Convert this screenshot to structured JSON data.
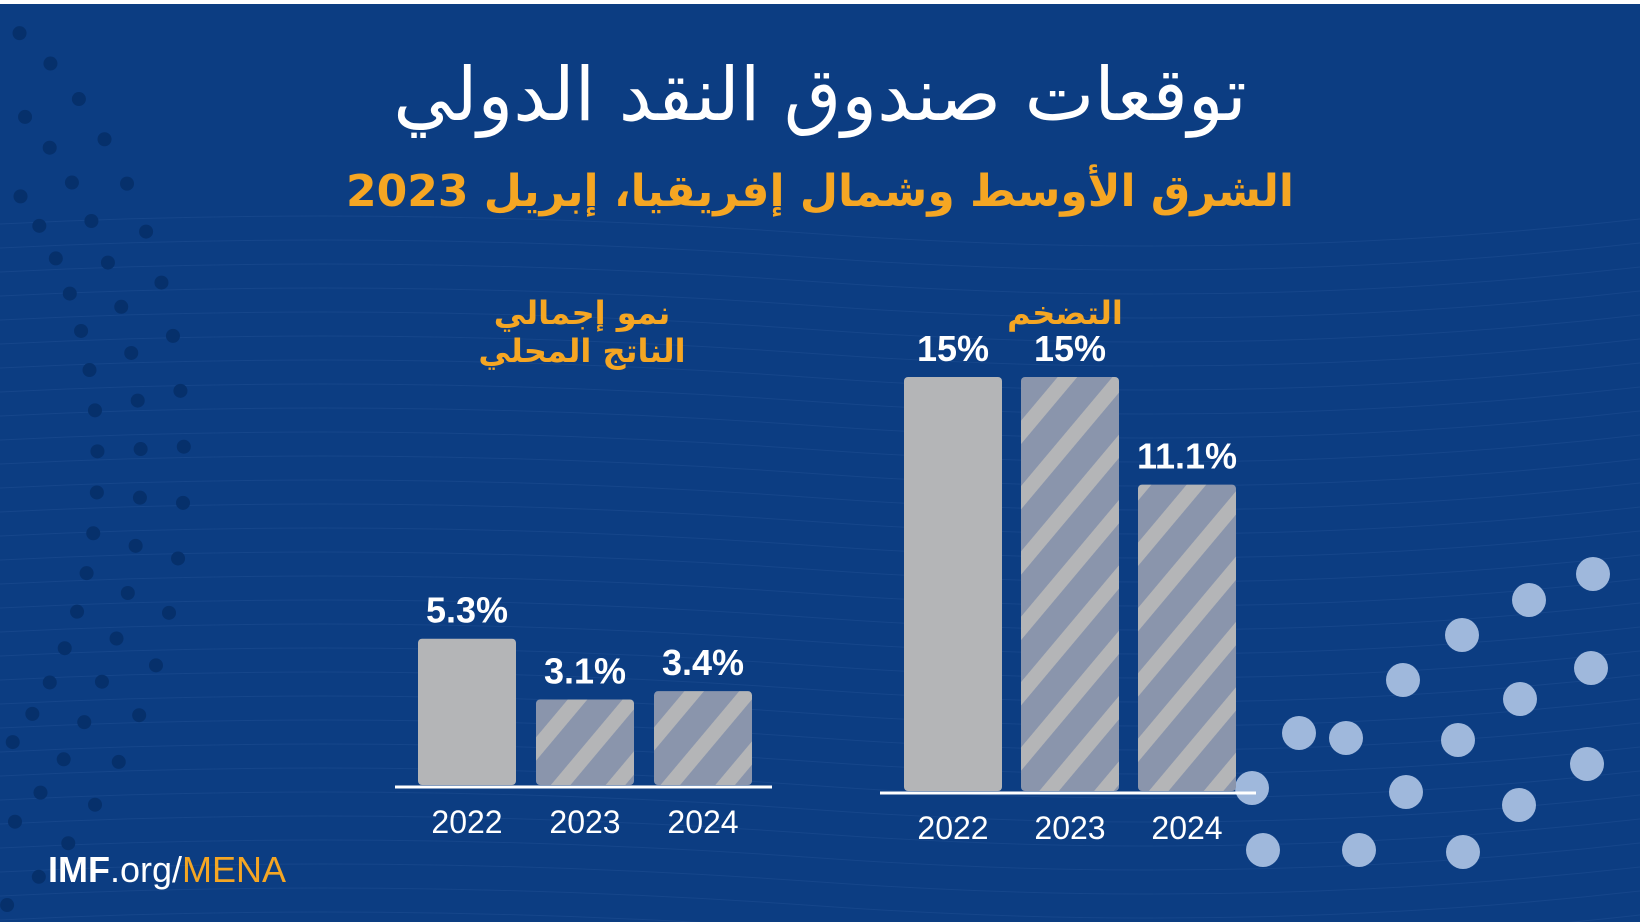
{
  "header": {
    "title": "توقعات صندوق النقد الدولي",
    "subtitle": "الشرق الأوسط وشمال إفريقيا، إبريل 2023"
  },
  "footer": {
    "imf": "IMF",
    "org": ".org/",
    "mena": "MENA"
  },
  "colors": {
    "background": "#0c3d82",
    "accent": "#f5a623",
    "bar_actual": "#b4b5b7",
    "bar_projection_stripe": "#b4b5b7",
    "bar_projection_base": "#8a95ac",
    "decorative_dots": "#9fb8dc"
  },
  "chart_data": [
    {
      "type": "bar",
      "title": "نمو إجمالي الناتج المحلي",
      "categories": [
        "2022",
        "2023",
        "2024"
      ],
      "values": [
        5.3,
        3.1,
        3.4
      ],
      "value_labels": [
        "5.3%",
        "3.1%",
        "3.4%"
      ],
      "projection": [
        false,
        true,
        true
      ],
      "ylim": [
        0,
        15
      ]
    },
    {
      "type": "bar",
      "title": "التضخم",
      "categories": [
        "2022",
        "2023",
        "2024"
      ],
      "values": [
        15,
        15,
        11.1
      ],
      "value_labels": [
        "15%",
        "15%",
        "11.1%"
      ],
      "projection": [
        false,
        true,
        true
      ],
      "ylim": [
        0,
        15
      ]
    }
  ]
}
